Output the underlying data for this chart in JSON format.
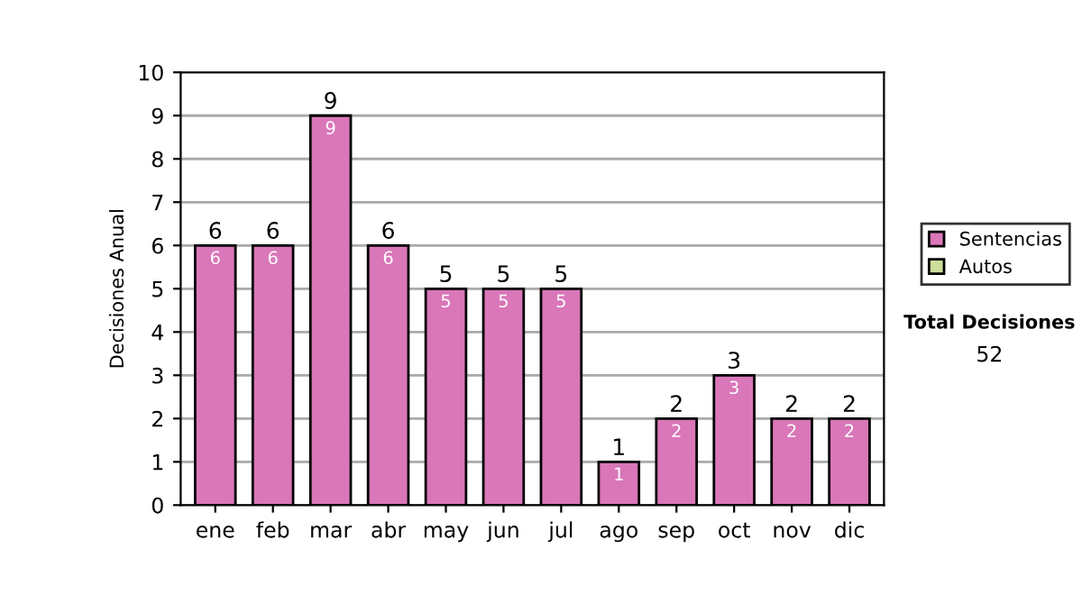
{
  "chart_data": {
    "type": "bar",
    "stacked": true,
    "ylabel": "Decisiones Anual",
    "categories": [
      "ene",
      "feb",
      "mar",
      "abr",
      "may",
      "jun",
      "jul",
      "ago",
      "sep",
      "oct",
      "nov",
      "dic"
    ],
    "series": [
      {
        "name": "Sentencias",
        "color": "#d977b9",
        "values": [
          6,
          6,
          9,
          6,
          5,
          5,
          5,
          1,
          2,
          3,
          2,
          2
        ],
        "value_labels": [
          "6",
          "6",
          "9",
          "6",
          "5",
          "5",
          "5",
          "1",
          "2",
          "3",
          "2",
          "2"
        ]
      },
      {
        "name": "Autos",
        "color": "#ccdd99",
        "values": [
          null,
          null,
          null,
          null,
          null,
          null,
          null,
          null,
          null,
          null,
          null,
          null
        ]
      }
    ],
    "totals": [
      "6",
      "6",
      "9",
      "6",
      "5",
      "5",
      "5",
      "1",
      "2",
      "3",
      "2",
      "2"
    ],
    "ylim": [
      0,
      10
    ],
    "yticks": [
      0,
      1,
      2,
      3,
      4,
      5,
      6,
      7,
      8,
      9,
      10
    ],
    "grid": "y",
    "legend": "right",
    "annotations": [
      "Total Decisiones",
      "52"
    ]
  }
}
